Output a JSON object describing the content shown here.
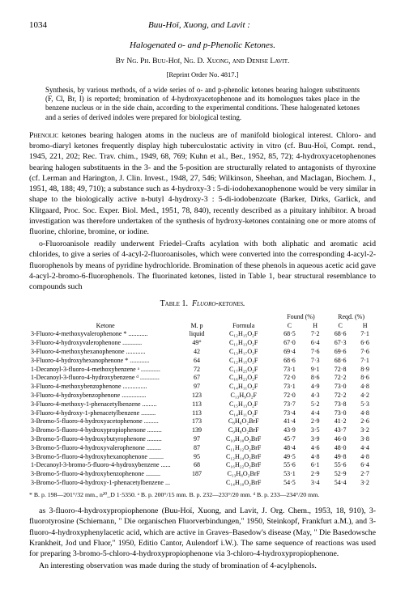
{
  "page_number": "1034",
  "running_head": "Buu-Hoï, Xuong, and Lavit :",
  "title": "Halogenated o- and p-Phenolic Ketones.",
  "authors": "By Ng. Ph. Buu-Hoï, Ng. D. Xuong, and Denise Lavit.",
  "reprint": "[Reprint Order No. 4817.]",
  "abstract": "Synthesis, by various methods, of a wide series of o- and p-phenolic ketones bearing halogen substituents (F, Cl, Br, I) is reported; bromination of 4-hydroxyacetophenone and its homologues takes place in the benzene nucleus or in the side chain, according to the experimental conditions. These halogenated ketones and a series of derived indoles were prepared for biological testing.",
  "para1": "Phenolic ketones bearing halogen atoms in the nucleus are of manifold biological interest. Chloro- and bromo-diaryl ketones frequently display high tuberculostatic activity in vitro (cf. Buu-Hoï, Compt. rend., 1945, 221, 202; Rec. Trav. chim., 1949, 68, 769; Kuhn et al., Ber., 1952, 85, 72); 4-hydroxyacetophenones bearing halogen substituents in the 3- and the 5-position are structurally related to antagonists of thyroxine (cf. Lerman and Harington, J. Clin. Invest., 1948, 27, 546; Wilkinson, Sheehan, and Maclagan, Biochem. J., 1951, 48, 188; 49, 710); a substance such as 4-hydroxy-3 : 5-di-iodohexanophenone would be very similar in shape to the biologically active n-butyl 4-hydroxy-3 : 5-di-iodobenzoate (Barker, Dirks, Garlick, and Klitgaard, Proc. Soc. Exper. Biol. Med., 1951, 78, 840), recently described as a pituitary inhibitor. A broad investigation was therefore undertaken of the synthesis of hydroxy-ketones containing one or more atoms of fluorine, chlorine, bromine, or iodine.",
  "para2": "o-Fluoroanisole readily underwent Friedel–Crafts acylation with both aliphatic and aromatic acid chlorides, to give a series of 4-acyl-2-fluoroanisoles, which were converted into the corresponding 4-acyl-2-fluorophenols by means of pyridine hydrochloride. Bromination of these phenols in aqueous acetic acid gave 4-acyl-2-bromo-6-fluorophenols. The fluorinated ketones, listed in Table 1, bear structural resemblance to compounds such",
  "table_caption": "Table 1.  Fluoro-ketones.",
  "table_headers": {
    "ketone": "Ketone",
    "mp": "M. p",
    "formula": "Formula",
    "found": "Found (%)",
    "reqd": "Reqd. (%)",
    "c": "C",
    "h": "H"
  },
  "table_rows": [
    {
      "name": "3-Fluoro-4-methoxyvalerophenone *",
      "lead": "............",
      "mp": "liquid",
      "formula": "C₁₂H₁₅O₂F",
      "fc": "68·5",
      "fh": "7·2",
      "rc": "68·6",
      "rh": "7·1"
    },
    {
      "name": "3-Fluoro-4-hydroxyvalerophenone",
      "lead": "............",
      "mp": "49°",
      "formula": "C₁₁H₁₃O₂F",
      "fc": "67·0",
      "fh": "6·4",
      "rc": "67·3",
      "rh": "6·6"
    },
    {
      "name": "3-Fluoro-4-methoxyhexanophenone",
      "lead": "............",
      "mp": "42",
      "formula": "C₁₃H₁₇O₂F",
      "fc": "69·4",
      "fh": "7·6",
      "rc": "69·6",
      "rh": "7·6"
    },
    {
      "name": "3-Fluoro-4-hydroxyhexanophenone *",
      "lead": "............",
      "mp": "64",
      "formula": "C₁₂H₁₅O₂F",
      "fc": "68·6",
      "fh": "7·3",
      "rc": "68·6",
      "rh": "7·1"
    },
    {
      "name": "1-Decanoyl-3-fluoro-4-methoxybenzene ᵃ",
      "lead": "............",
      "mp": "72",
      "formula": "C₁₇H₂₅O₂F",
      "fc": "73·1",
      "fh": "9·1",
      "rc": "72·8",
      "rh": "8·9"
    },
    {
      "name": "1-Decanoyl-3-fluoro-4-hydroxybenzene ᵈ",
      "lead": "............",
      "mp": "67",
      "formula": "C₁₆H₂₃O₂F",
      "fc": "72·0",
      "fh": "8·6",
      "rc": "72·2",
      "rh": "8·6"
    },
    {
      "name": "3-Fluoro-4-methoxybenzophenone",
      "lead": "...............",
      "mp": "97",
      "formula": "C₁₄H₁₁O₂F",
      "fc": "73·1",
      "fh": "4·9",
      "rc": "73·0",
      "rh": "4·8"
    },
    {
      "name": "3-Fluoro-4-hydroxybenzophenone",
      "lead": "...............",
      "mp": "123",
      "formula": "C₁₃H₉O₂F",
      "fc": "72·0",
      "fh": "4·3",
      "rc": "72·2",
      "rh": "4·2"
    },
    {
      "name": "3-Fluoro-4-methoxy-1-phenacetylbenzene",
      "lead": ".........",
      "mp": "113",
      "formula": "C₁₅H₁₃O₂F",
      "fc": "73·7",
      "fh": "5·2",
      "rc": "73·8",
      "rh": "5·3"
    },
    {
      "name": "3-Fluoro-4-hydroxy-1-phenacetylbenzene",
      "lead": ".........",
      "mp": "113",
      "formula": "C₁₄H₁₁O₂F",
      "fc": "73·4",
      "fh": "4·4",
      "rc": "73·0",
      "rh": "4·8"
    },
    {
      "name": "3-Bromo-5-fluoro-4-hydroxyacetophenone",
      "lead": ".........",
      "mp": "173",
      "formula": "C₈H₆O₂BrF",
      "fc": "41·4",
      "fh": "2·9",
      "rc": "41·2",
      "rh": "2·6"
    },
    {
      "name": "3-Bromo-5-fluoro-4-hydroxypropiophenone",
      "lead": ".........",
      "mp": "139",
      "formula": "C₉H₈O₂BrF",
      "fc": "43·9",
      "fh": "3·5",
      "rc": "43·7",
      "rh": "3·2"
    },
    {
      "name": "3-Bromo-5-fluoro-4-hydroxybutyrophenone",
      "lead": ".........",
      "mp": "97",
      "formula": "C₁₀H₁₀O₂BrF",
      "fc": "45·7",
      "fh": "3·9",
      "rc": "46·0",
      "rh": "3·8"
    },
    {
      "name": "3-Bromo-5-fluoro-4-hydroxyvalerophenone",
      "lead": ".........",
      "mp": "87",
      "formula": "C₁₁H₁₂O₂BrF",
      "fc": "48·4",
      "fh": "4·6",
      "rc": "48·0",
      "rh": "4·4"
    },
    {
      "name": "3-Bromo-5-fluoro-4-hydroxyhexanophenone",
      "lead": ".........",
      "mp": "95",
      "formula": "C₁₂H₁₄O₂BrF",
      "fc": "49·5",
      "fh": "4·8",
      "rc": "49·8",
      "rh": "4·8"
    },
    {
      "name": "1-Decanoyl-3-bromo-5-fluoro-4-hydroxybenzene",
      "lead": "......",
      "mp": "68",
      "formula": "C₁₆H₂₂O₂BrF",
      "fc": "55·6",
      "fh": "6·1",
      "rc": "55·6",
      "rh": "6·4"
    },
    {
      "name": "3-Bromo-5-fluoro-4-hydroxybenzophenone",
      "lead": ".........",
      "mp": "187",
      "formula": "C₁₃H₈O₂BrF",
      "fc": "53·1",
      "fh": "2·9",
      "rc": "52·9",
      "rh": "2·7"
    },
    {
      "name": "3-Bromo-5-fluoro-4-hydroxy-1-phenacetylbenzene",
      "lead": "...",
      "mp": "",
      "formula": "C₁₄H₁₀O₂BrF",
      "fc": "54·5",
      "fh": "3·4",
      "rc": "54·4",
      "rh": "3·2"
    }
  ],
  "table_footnotes": [
    "* B. p. 198—201°/32 mm., n²⁰_D 1·5350.   ᵃ B. p. 200°/15 mm.   B. p. 232—233°/20 mm.   ᵈ B. p. 233—234°/20 mm."
  ],
  "para3": "as 3-fluoro-4-hydroxypropiophenone (Buu-Hoï, Xuong, and Lavit, J. Org. Chem., 1953, 18, 910), 3-fluorotyrosine (Schiemann, \" Die organischen Fluorverbindungen,\" 1950, Steinkopf, Frankfurt a.M.), and 3-fluoro-4-hydroxyphenylacetic acid, which are active in Graves–Basedow's disease (May, \" Die Basedowsche Krankheit, Jod und Fluor,\" 1950, Editio Cantor, Aulendorf i.W.).   The same sequence of reactions was used for preparing 3-bromo-5-chloro-4-hydroxypropiophenone via 3-chloro-4-hydroxypropiophenone.",
  "para4": "An interesting observation was made during the study of bromination of 4-acylphenols."
}
